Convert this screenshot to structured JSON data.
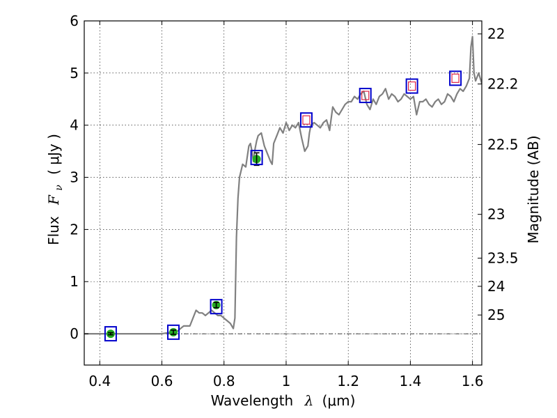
{
  "chart_data": {
    "type": "line",
    "xlabel_text": "Wavelength",
    "xlabel_symbol": "λ",
    "xlabel_unit": "(μm)",
    "ylabel_text": "Flux",
    "ylabel_symbol": "F",
    "ylabel_subscript": "ν",
    "ylabel_unit": "( μJy )",
    "ylabel_right": "Magnitude (AB)",
    "xlim": [
      0.35,
      1.63
    ],
    "ylim": [
      -0.6,
      6
    ],
    "grid": true,
    "x_ticks": [
      {
        "value": 0.4,
        "label": "0.4"
      },
      {
        "value": 0.6,
        "label": "0.6"
      },
      {
        "value": 0.8,
        "label": "0.8"
      },
      {
        "value": 1.0,
        "label": "1"
      },
      {
        "value": 1.2,
        "label": "1.2"
      },
      {
        "value": 1.4,
        "label": "1.4"
      },
      {
        "value": 1.6,
        "label": "1.6"
      }
    ],
    "y_ticks": [
      {
        "value": 0,
        "label": "0"
      },
      {
        "value": 1,
        "label": "1"
      },
      {
        "value": 2,
        "label": "2"
      },
      {
        "value": 3,
        "label": "3"
      },
      {
        "value": 4,
        "label": "4"
      },
      {
        "value": 5,
        "label": "5"
      },
      {
        "value": 6,
        "label": "6"
      }
    ],
    "right_ticks": [
      {
        "mag": 22,
        "flux": 5.75,
        "label": "22"
      },
      {
        "mag": 22.2,
        "flux": 4.79,
        "label": "22.2"
      },
      {
        "mag": 22.5,
        "flux": 3.63,
        "label": "22.5"
      },
      {
        "mag": 23,
        "flux": 2.29,
        "label": "23"
      },
      {
        "mag": 23.5,
        "flux": 1.45,
        "label": "23.5"
      },
      {
        "mag": 24,
        "flux": 0.91,
        "label": "24"
      },
      {
        "mag": 25,
        "flux": 0.36,
        "label": "25"
      }
    ],
    "series": [
      {
        "color": "#808080",
        "x": [
          0.35,
          0.4,
          0.45,
          0.5,
          0.55,
          0.6,
          0.65,
          0.67,
          0.69,
          0.71,
          0.72,
          0.73,
          0.74,
          0.75,
          0.76,
          0.77,
          0.78,
          0.79,
          0.8,
          0.81,
          0.82,
          0.83,
          0.835,
          0.84,
          0.845,
          0.85,
          0.86,
          0.87,
          0.875,
          0.88,
          0.885,
          0.89,
          0.895,
          0.9,
          0.905,
          0.91,
          0.92,
          0.93,
          0.94,
          0.95,
          0.955,
          0.96,
          0.97,
          0.98,
          0.99,
          1.0,
          1.01,
          1.02,
          1.03,
          1.04,
          1.05,
          1.06,
          1.07,
          1.075,
          1.08,
          1.09,
          1.1,
          1.11,
          1.12,
          1.13,
          1.14,
          1.15,
          1.16,
          1.17,
          1.18,
          1.19,
          1.2,
          1.21,
          1.22,
          1.23,
          1.24,
          1.25,
          1.26,
          1.27,
          1.28,
          1.29,
          1.3,
          1.31,
          1.32,
          1.33,
          1.34,
          1.35,
          1.36,
          1.37,
          1.38,
          1.39,
          1.4,
          1.41,
          1.42,
          1.43,
          1.44,
          1.45,
          1.46,
          1.47,
          1.48,
          1.49,
          1.5,
          1.51,
          1.52,
          1.53,
          1.54,
          1.55,
          1.56,
          1.57,
          1.58,
          1.59,
          1.595,
          1.6,
          1.605,
          1.61,
          1.62,
          1.63
        ],
        "y": [
          0.0,
          0.0,
          0.0,
          0.0,
          0.0,
          0.0,
          0.05,
          0.15,
          0.15,
          0.45,
          0.4,
          0.4,
          0.35,
          0.4,
          0.45,
          0.4,
          0.35,
          0.35,
          0.3,
          0.25,
          0.2,
          0.1,
          0.3,
          1.85,
          2.6,
          3.0,
          3.25,
          3.2,
          3.4,
          3.6,
          3.65,
          3.5,
          3.3,
          3.55,
          3.7,
          3.8,
          3.85,
          3.6,
          3.45,
          3.3,
          3.25,
          3.65,
          3.8,
          3.95,
          3.85,
          4.05,
          3.9,
          4.0,
          3.95,
          4.05,
          3.75,
          3.5,
          3.6,
          3.85,
          4.0,
          4.05,
          4.0,
          3.95,
          4.05,
          4.1,
          3.9,
          4.35,
          4.25,
          4.2,
          4.3,
          4.4,
          4.45,
          4.45,
          4.55,
          4.5,
          4.6,
          4.65,
          4.4,
          4.3,
          4.5,
          4.4,
          4.55,
          4.6,
          4.7,
          4.5,
          4.6,
          4.55,
          4.45,
          4.5,
          4.6,
          4.55,
          4.5,
          4.55,
          4.2,
          4.45,
          4.45,
          4.5,
          4.4,
          4.35,
          4.45,
          4.5,
          4.4,
          4.45,
          4.6,
          4.55,
          4.45,
          4.6,
          4.7,
          4.65,
          4.75,
          4.9,
          5.5,
          5.7,
          5.0,
          4.85,
          5.0,
          4.8
        ]
      }
    ],
    "model_points": {
      "color": "#0000cc",
      "x": [
        0.435,
        0.637,
        0.775,
        0.905,
        1.065,
        1.255,
        1.405,
        1.545
      ],
      "y": [
        0.0,
        0.03,
        0.52,
        3.38,
        4.1,
        4.57,
        4.75,
        4.9
      ]
    },
    "inner_points": {
      "color": "#dd2244",
      "x": [
        1.065,
        1.255,
        1.405,
        1.545
      ],
      "y": [
        4.1,
        4.57,
        4.75,
        4.9
      ]
    },
    "observed_points": {
      "color": "#22aa22",
      "x": [
        0.435,
        0.637,
        0.775,
        0.905
      ],
      "y": [
        0.0,
        0.03,
        0.55,
        3.35
      ],
      "yerr": [
        0.02,
        0.04,
        0.05,
        0.12
      ]
    }
  }
}
